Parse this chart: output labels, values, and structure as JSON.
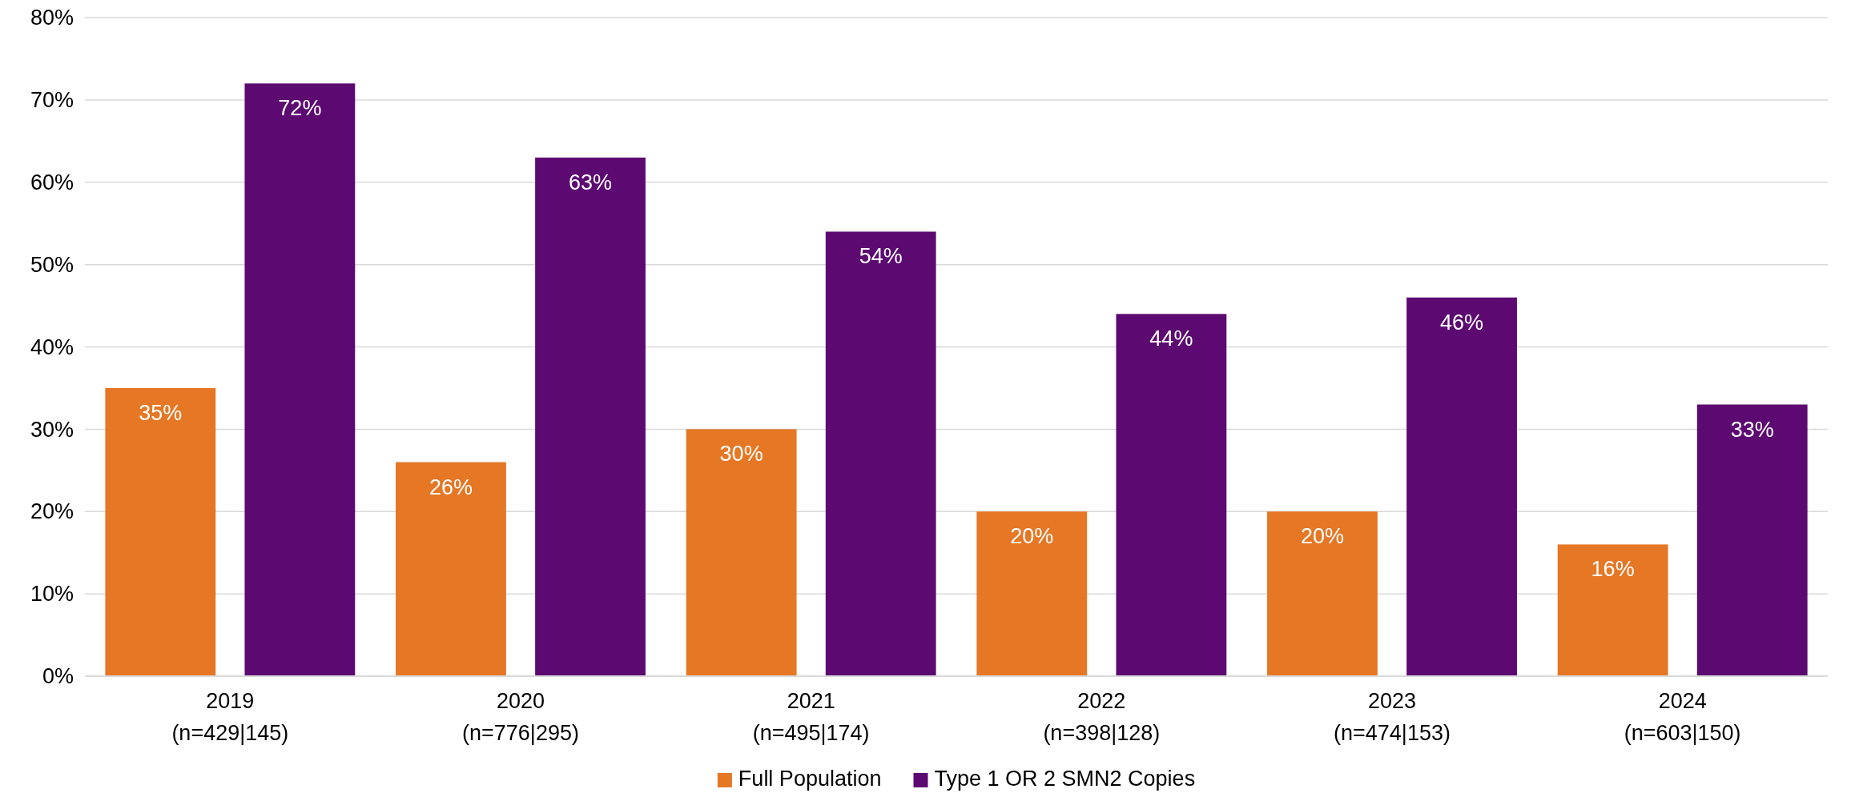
{
  "chart_data": {
    "type": "bar",
    "categories": [
      "2019\n(n=429|145)",
      "2020\n(n=776|295)",
      "2021\n(n=495|174)",
      "2022\n(n=398|128)",
      "2023\n(n=474|153)",
      "2024\n(n=603|150)"
    ],
    "series": [
      {
        "name": "Full Population",
        "color": "#e57725",
        "values": [
          35,
          26,
          30,
          20,
          20,
          16
        ],
        "value_labels": [
          "35%",
          "26%",
          "30%",
          "20%",
          "20%",
          "16%"
        ]
      },
      {
        "name": "Type 1 OR 2 SMN2 Copies",
        "color": "#5c0a72",
        "values": [
          72,
          63,
          54,
          44,
          46,
          33
        ],
        "value_labels": [
          "72%",
          "63%",
          "54%",
          "44%",
          "46%",
          "33%"
        ]
      }
    ],
    "ylim": [
      0,
      80
    ],
    "yticks": [
      {
        "value": 0,
        "label": "0%"
      },
      {
        "value": 10,
        "label": "10%"
      },
      {
        "value": 20,
        "label": "20%"
      },
      {
        "value": 30,
        "label": "30%"
      },
      {
        "value": 40,
        "label": "40%"
      },
      {
        "value": 50,
        "label": "50%"
      },
      {
        "value": 60,
        "label": "60%"
      },
      {
        "value": 70,
        "label": "70%"
      },
      {
        "value": 80,
        "label": "80%"
      }
    ],
    "grid": "y",
    "legend": "bottom"
  }
}
